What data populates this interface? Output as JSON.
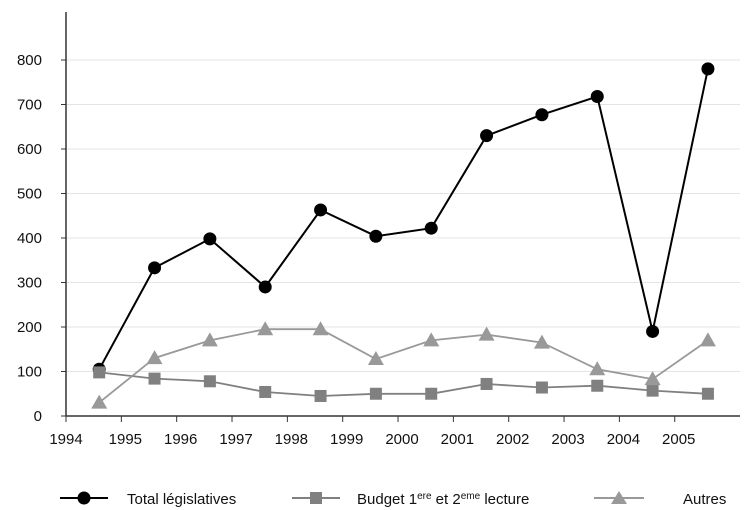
{
  "chart_data": {
    "type": "line",
    "title": "",
    "xlabel": "",
    "ylabel": "",
    "x_ticks": [
      "1994",
      "1995",
      "1996",
      "1997",
      "1998",
      "1999",
      "2000",
      "2001",
      "2002",
      "2003",
      "2004",
      "2005"
    ],
    "y_ticks": [
      0,
      100,
      200,
      300,
      400,
      500,
      600,
      700,
      800
    ],
    "ylim": [
      0,
      800
    ],
    "xlim": [
      1994,
      2006
    ],
    "grid": "horizontal",
    "legend_position": "bottom",
    "series": [
      {
        "name": "Total législatives",
        "marker": "circle",
        "color": "#000000",
        "points": [
          {
            "x": 1994.6,
            "y": 105
          },
          {
            "x": 1995.6,
            "y": 333
          },
          {
            "x": 1996.6,
            "y": 398
          },
          {
            "x": 1997.6,
            "y": 290
          },
          {
            "x": 1998.6,
            "y": 463
          },
          {
            "x": 1999.6,
            "y": 404
          },
          {
            "x": 2000.6,
            "y": 422
          },
          {
            "x": 2001.6,
            "y": 630
          },
          {
            "x": 2002.6,
            "y": 677
          },
          {
            "x": 2003.6,
            "y": 718
          },
          {
            "x": 2004.6,
            "y": 190
          },
          {
            "x": 2005.6,
            "y": 780
          }
        ]
      },
      {
        "name": "Budget 1ere et 2eme lecture",
        "marker": "square",
        "color": "#808080",
        "points": [
          {
            "x": 1994.6,
            "y": 98
          },
          {
            "x": 1995.6,
            "y": 84
          },
          {
            "x": 1996.6,
            "y": 78
          },
          {
            "x": 1997.6,
            "y": 54
          },
          {
            "x": 1998.6,
            "y": 45
          },
          {
            "x": 1999.6,
            "y": 50
          },
          {
            "x": 2000.6,
            "y": 50
          },
          {
            "x": 2001.6,
            "y": 72
          },
          {
            "x": 2002.6,
            "y": 64
          },
          {
            "x": 2003.6,
            "y": 68
          },
          {
            "x": 2004.6,
            "y": 57
          },
          {
            "x": 2005.6,
            "y": 50
          }
        ]
      },
      {
        "name": "Autres",
        "marker": "triangle",
        "color": "#999999",
        "points": [
          {
            "x": 1994.6,
            "y": 30
          },
          {
            "x": 1995.6,
            "y": 130
          },
          {
            "x": 1996.6,
            "y": 170
          },
          {
            "x": 1997.6,
            "y": 195
          },
          {
            "x": 1998.6,
            "y": 195
          },
          {
            "x": 1999.6,
            "y": 128
          },
          {
            "x": 2000.6,
            "y": 170
          },
          {
            "x": 2001.6,
            "y": 183
          },
          {
            "x": 2002.6,
            "y": 165
          },
          {
            "x": 2003.6,
            "y": 105
          },
          {
            "x": 2004.6,
            "y": 83
          },
          {
            "x": 2005.6,
            "y": 170
          }
        ]
      }
    ],
    "legend": {
      "total_label": "Total législatives",
      "budget_label_pre": "Budget 1",
      "budget_sup1": "ere",
      "budget_label_mid": " et 2",
      "budget_sup2": "eme",
      "budget_label_post": " lecture",
      "autres_label": "Autres"
    }
  }
}
